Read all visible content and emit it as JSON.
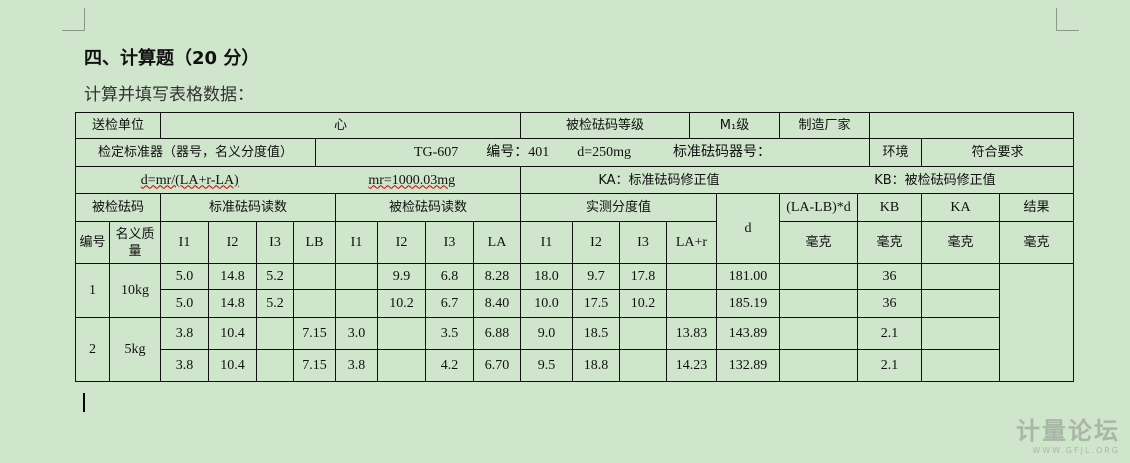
{
  "heading": "四、计算题（20 分）",
  "instruction": "计算并填写表格数据：",
  "info": {
    "unit_label": "送检单位",
    "unit_value": "心",
    "grade_label": "被检砝码等级",
    "grade_value": "M₁级",
    "maker_label": "制造厂家",
    "maker_value": "",
    "standard_label": "检定标准器（器号，名义分度值）",
    "standard_value": "TG-607　　编号：401　　d=250mg　　　标准砝码器号：",
    "env_label": "环境",
    "env_value": "符合要求",
    "formula_d": "d=mr/(LA+r-LA)",
    "formula_mr": "mr=1000.03mg",
    "ka_note": "KA：标准砝码修正值",
    "kb_note": "KB：被检砝码修正值"
  },
  "headers": {
    "tested": "被检砝码",
    "std_reading": "标准砝码读数",
    "tested_reading": "被检砝码读数",
    "measured": "实测分度值",
    "d": "d",
    "lalbd": "(LA-LB)*d",
    "kb": "KB",
    "ka": "KA",
    "result": "结果",
    "no": "编号",
    "nominal": "名义质量",
    "sub": [
      "I1",
      "I2",
      "I3",
      "LB",
      "I1",
      "I2",
      "I3",
      "LA",
      "I1",
      "I2",
      "I3",
      "LA+r"
    ],
    "units": [
      "毫克",
      "毫克",
      "毫克",
      "毫克"
    ]
  },
  "groups": [
    {
      "no": "1",
      "nominal": "10kg"
    },
    {
      "no": "2",
      "nominal": "5kg"
    }
  ],
  "rows": [
    {
      "vals": [
        "5.0",
        "14.8",
        "5.2",
        "",
        "",
        "9.9",
        "6.8",
        "8.28",
        "18.0",
        "9.7",
        "17.8",
        ""
      ],
      "d": "181.00",
      "lalbd": "",
      "kb": "36",
      "ka": ""
    },
    {
      "vals": [
        "5.0",
        "14.8",
        "5.2",
        "",
        "",
        "10.2",
        "6.7",
        "8.40",
        "10.0",
        "17.5",
        "10.2",
        ""
      ],
      "d": "185.19",
      "lalbd": "",
      "kb": "36",
      "ka": ""
    },
    {
      "vals": [
        "3.8",
        "10.4",
        "",
        "7.15",
        "3.0",
        "",
        "3.5",
        "6.88",
        "9.0",
        "18.5",
        "",
        "13.83"
      ],
      "d": "143.89",
      "lalbd": "",
      "kb": "2.1",
      "ka": ""
    },
    {
      "vals": [
        "3.8",
        "10.4",
        "",
        "7.15",
        "3.8",
        "",
        "4.2",
        "6.70",
        "9.5",
        "18.8",
        "",
        "14.23"
      ],
      "d": "132.89",
      "lalbd": "",
      "kb": "2.1",
      "ka": ""
    }
  ],
  "result_value": "",
  "watermark": {
    "title": "计量论坛",
    "url": "www.GFJL.ORG"
  }
}
